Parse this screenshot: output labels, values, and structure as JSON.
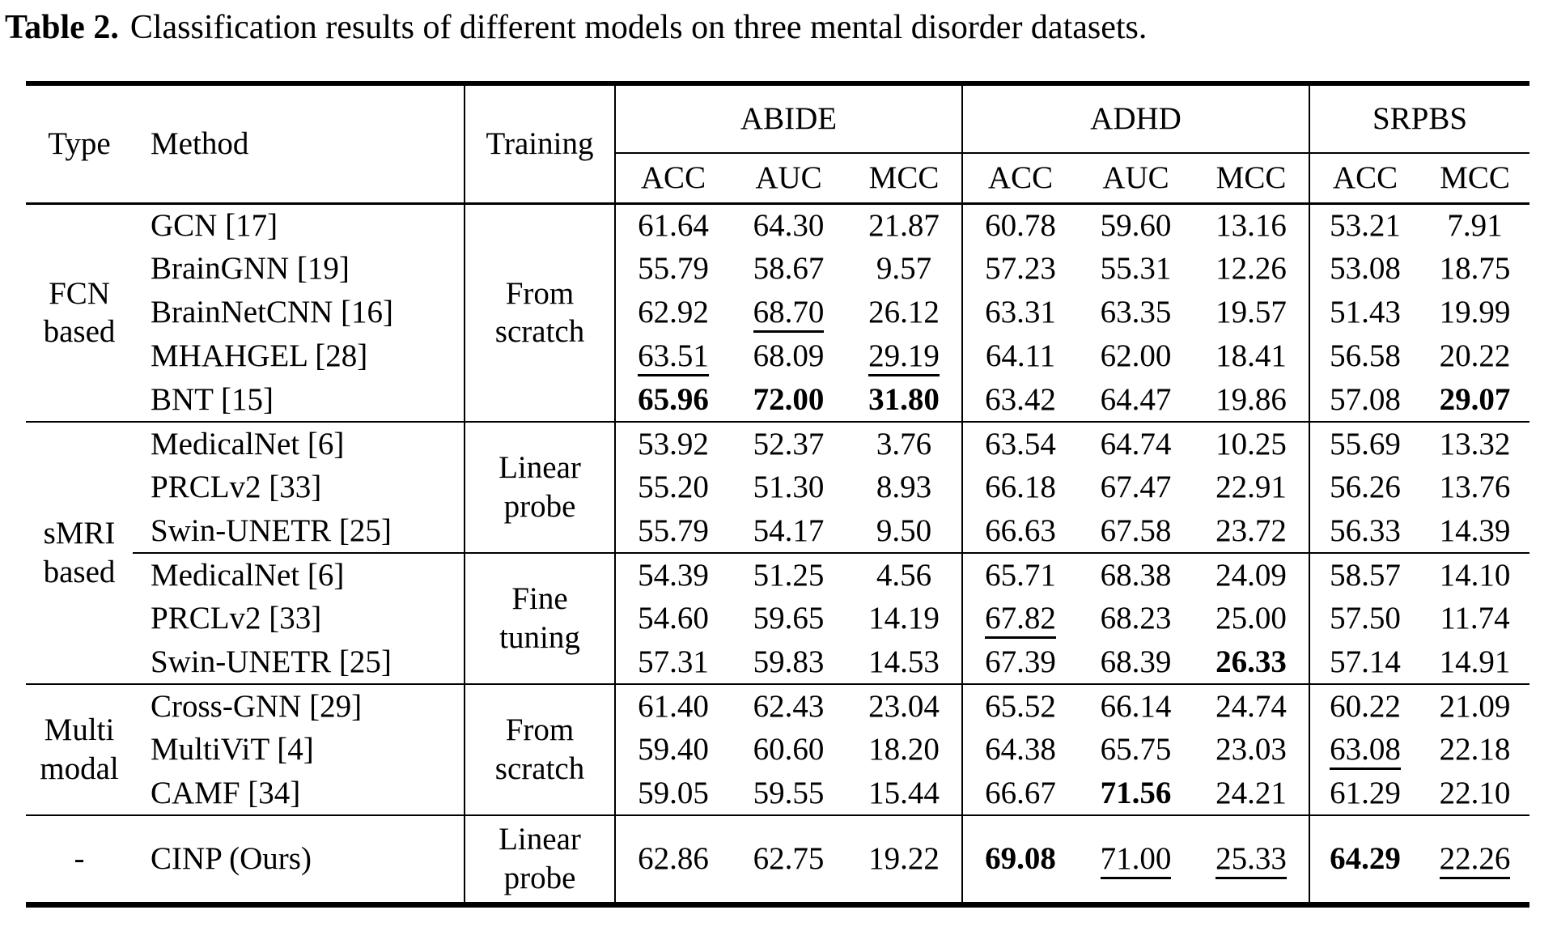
{
  "caption": {
    "label": "Table 2.",
    "text": "Classification results of different models on three mental disorder datasets."
  },
  "colors": {
    "text": "#000000",
    "background": "#ffffff",
    "rule": "#000000"
  },
  "table": {
    "headers": {
      "type": "Type",
      "method": "Method",
      "training": "Training"
    },
    "groups": [
      {
        "label": "ABIDE",
        "metrics": [
          "ACC",
          "AUC",
          "MCC"
        ]
      },
      {
        "label": "ADHD",
        "metrics": [
          "ACC",
          "AUC",
          "MCC"
        ]
      },
      {
        "label": "SRPBS",
        "metrics": [
          "ACC",
          "MCC"
        ]
      }
    ],
    "sections": [
      {
        "type": "FCN\nbased",
        "blocks": [
          {
            "training": "From\nscratch",
            "rows": [
              {
                "method": "GCN [17]",
                "values": [
                  [
                    "61.64",
                    ""
                  ],
                  [
                    "64.30",
                    ""
                  ],
                  [
                    "21.87",
                    ""
                  ],
                  [
                    "60.78",
                    ""
                  ],
                  [
                    "59.60",
                    ""
                  ],
                  [
                    "13.16",
                    ""
                  ],
                  [
                    "53.21",
                    ""
                  ],
                  [
                    "7.91",
                    ""
                  ]
                ]
              },
              {
                "method": "BrainGNN [19]",
                "values": [
                  [
                    "55.79",
                    ""
                  ],
                  [
                    "58.67",
                    ""
                  ],
                  [
                    "9.57",
                    ""
                  ],
                  [
                    "57.23",
                    ""
                  ],
                  [
                    "55.31",
                    ""
                  ],
                  [
                    "12.26",
                    ""
                  ],
                  [
                    "53.08",
                    ""
                  ],
                  [
                    "18.75",
                    ""
                  ]
                ]
              },
              {
                "method": "BrainNetCNN [16]",
                "values": [
                  [
                    "62.92",
                    ""
                  ],
                  [
                    "68.70",
                    "u"
                  ],
                  [
                    "26.12",
                    ""
                  ],
                  [
                    "63.31",
                    ""
                  ],
                  [
                    "63.35",
                    ""
                  ],
                  [
                    "19.57",
                    ""
                  ],
                  [
                    "51.43",
                    ""
                  ],
                  [
                    "19.99",
                    ""
                  ]
                ]
              },
              {
                "method": "MHAHGEL [28]",
                "values": [
                  [
                    "63.51",
                    "u"
                  ],
                  [
                    "68.09",
                    ""
                  ],
                  [
                    "29.19",
                    "u"
                  ],
                  [
                    "64.11",
                    ""
                  ],
                  [
                    "62.00",
                    ""
                  ],
                  [
                    "18.41",
                    ""
                  ],
                  [
                    "56.58",
                    ""
                  ],
                  [
                    "20.22",
                    ""
                  ]
                ]
              },
              {
                "method": "BNT [15]",
                "values": [
                  [
                    "65.96",
                    "b"
                  ],
                  [
                    "72.00",
                    "b"
                  ],
                  [
                    "31.80",
                    "b"
                  ],
                  [
                    "63.42",
                    ""
                  ],
                  [
                    "64.47",
                    ""
                  ],
                  [
                    "19.86",
                    ""
                  ],
                  [
                    "57.08",
                    ""
                  ],
                  [
                    "29.07",
                    "b"
                  ]
                ]
              }
            ]
          }
        ]
      },
      {
        "type": "sMRI\nbased",
        "blocks": [
          {
            "training": "Linear\nprobe",
            "rows": [
              {
                "method": "MedicalNet [6]",
                "values": [
                  [
                    "53.92",
                    ""
                  ],
                  [
                    "52.37",
                    ""
                  ],
                  [
                    "3.76",
                    ""
                  ],
                  [
                    "63.54",
                    ""
                  ],
                  [
                    "64.74",
                    ""
                  ],
                  [
                    "10.25",
                    ""
                  ],
                  [
                    "55.69",
                    ""
                  ],
                  [
                    "13.32",
                    ""
                  ]
                ]
              },
              {
                "method": "PRCLv2 [33]",
                "values": [
                  [
                    "55.20",
                    ""
                  ],
                  [
                    "51.30",
                    ""
                  ],
                  [
                    "8.93",
                    ""
                  ],
                  [
                    "66.18",
                    ""
                  ],
                  [
                    "67.47",
                    ""
                  ],
                  [
                    "22.91",
                    ""
                  ],
                  [
                    "56.26",
                    ""
                  ],
                  [
                    "13.76",
                    ""
                  ]
                ]
              },
              {
                "method": "Swin-UNETR [25]",
                "values": [
                  [
                    "55.79",
                    ""
                  ],
                  [
                    "54.17",
                    ""
                  ],
                  [
                    "9.50",
                    ""
                  ],
                  [
                    "66.63",
                    ""
                  ],
                  [
                    "67.58",
                    ""
                  ],
                  [
                    "23.72",
                    ""
                  ],
                  [
                    "56.33",
                    ""
                  ],
                  [
                    "14.39",
                    ""
                  ]
                ]
              }
            ]
          },
          {
            "training": "Fine\ntuning",
            "rows": [
              {
                "method": "MedicalNet [6]",
                "values": [
                  [
                    "54.39",
                    ""
                  ],
                  [
                    "51.25",
                    ""
                  ],
                  [
                    "4.56",
                    ""
                  ],
                  [
                    "65.71",
                    ""
                  ],
                  [
                    "68.38",
                    ""
                  ],
                  [
                    "24.09",
                    ""
                  ],
                  [
                    "58.57",
                    ""
                  ],
                  [
                    "14.10",
                    ""
                  ]
                ]
              },
              {
                "method": "PRCLv2 [33]",
                "values": [
                  [
                    "54.60",
                    ""
                  ],
                  [
                    "59.65",
                    ""
                  ],
                  [
                    "14.19",
                    ""
                  ],
                  [
                    "67.82",
                    "u"
                  ],
                  [
                    "68.23",
                    ""
                  ],
                  [
                    "25.00",
                    ""
                  ],
                  [
                    "57.50",
                    ""
                  ],
                  [
                    "11.74",
                    ""
                  ]
                ]
              },
              {
                "method": "Swin-UNETR [25]",
                "values": [
                  [
                    "57.31",
                    ""
                  ],
                  [
                    "59.83",
                    ""
                  ],
                  [
                    "14.53",
                    ""
                  ],
                  [
                    "67.39",
                    ""
                  ],
                  [
                    "68.39",
                    ""
                  ],
                  [
                    "26.33",
                    "b"
                  ],
                  [
                    "57.14",
                    ""
                  ],
                  [
                    "14.91",
                    ""
                  ]
                ]
              }
            ]
          }
        ]
      },
      {
        "type": "Multi\nmodal",
        "blocks": [
          {
            "training": "From\nscratch",
            "rows": [
              {
                "method": "Cross-GNN [29]",
                "values": [
                  [
                    "61.40",
                    ""
                  ],
                  [
                    "62.43",
                    ""
                  ],
                  [
                    "23.04",
                    ""
                  ],
                  [
                    "65.52",
                    ""
                  ],
                  [
                    "66.14",
                    ""
                  ],
                  [
                    "24.74",
                    ""
                  ],
                  [
                    "60.22",
                    ""
                  ],
                  [
                    "21.09",
                    ""
                  ]
                ]
              },
              {
                "method": "MultiViT [4]",
                "values": [
                  [
                    "59.40",
                    ""
                  ],
                  [
                    "60.60",
                    ""
                  ],
                  [
                    "18.20",
                    ""
                  ],
                  [
                    "64.38",
                    ""
                  ],
                  [
                    "65.75",
                    ""
                  ],
                  [
                    "23.03",
                    ""
                  ],
                  [
                    "63.08",
                    "u"
                  ],
                  [
                    "22.18",
                    ""
                  ]
                ]
              },
              {
                "method": "CAMF [34]",
                "values": [
                  [
                    "59.05",
                    ""
                  ],
                  [
                    "59.55",
                    ""
                  ],
                  [
                    "15.44",
                    ""
                  ],
                  [
                    "66.67",
                    ""
                  ],
                  [
                    "71.56",
                    "b"
                  ],
                  [
                    "24.21",
                    ""
                  ],
                  [
                    "61.29",
                    ""
                  ],
                  [
                    "22.10",
                    ""
                  ]
                ]
              }
            ]
          }
        ]
      },
      {
        "type": "-",
        "blocks": [
          {
            "training": "Linear\nprobe",
            "rows": [
              {
                "method": "CINP (Ours)",
                "values": [
                  [
                    "62.86",
                    ""
                  ],
                  [
                    "62.75",
                    ""
                  ],
                  [
                    "19.22",
                    ""
                  ],
                  [
                    "69.08",
                    "b"
                  ],
                  [
                    "71.00",
                    "u"
                  ],
                  [
                    "25.33",
                    "u"
                  ],
                  [
                    "64.29",
                    "b"
                  ],
                  [
                    "22.26",
                    "u"
                  ]
                ]
              }
            ]
          }
        ]
      }
    ]
  }
}
